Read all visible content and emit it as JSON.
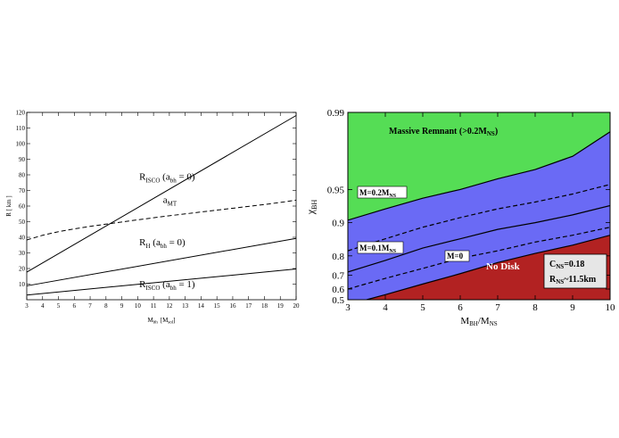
{
  "chart_data": [
    {
      "type": "line",
      "xlabel": "M",
      "xlabel_sub": "bh",
      "xlabel_unit": "[M",
      "xlabel_unit_sub": "sol",
      "xlabel_unit_end": "]",
      "ylabel": "R [ km ]",
      "xlim": [
        3,
        20
      ],
      "ylim": [
        0,
        120
      ],
      "x_ticks": [
        3,
        4,
        5,
        6,
        7,
        8,
        9,
        10,
        11,
        12,
        13,
        14,
        15,
        16,
        17,
        18,
        19,
        20
      ],
      "y_ticks": [
        10,
        20,
        30,
        40,
        50,
        60,
        70,
        80,
        90,
        100,
        110,
        120
      ],
      "series": [
        {
          "key": "risco0",
          "style": "solid",
          "x": [
            3,
            20
          ],
          "y": [
            17.7,
            118
          ]
        },
        {
          "key": "amt",
          "style": "dashed",
          "x": [
            3,
            4,
            5,
            6,
            7,
            8,
            9,
            10,
            11,
            12,
            13,
            14,
            15,
            16,
            17,
            18,
            19,
            20
          ],
          "y": [
            38.3,
            41.3,
            43.6,
            45.4,
            47.0,
            48.4,
            49.8,
            51.2,
            52.5,
            53.8,
            55.0,
            56.2,
            57.4,
            58.6,
            59.8,
            61.0,
            62.3,
            63.8
          ]
        },
        {
          "key": "rh0",
          "style": "solid",
          "x": [
            3,
            20
          ],
          "y": [
            8.9,
            39.3
          ]
        },
        {
          "key": "risco1",
          "style": "solid",
          "x": [
            3,
            20
          ],
          "y": [
            3.0,
            19.7
          ]
        }
      ],
      "annotations": [
        {
          "key": "risco0",
          "main": "R",
          "sub": "ISCO",
          "mid": " (a",
          "sub2": "bh",
          "end": " = 0)",
          "x": 10.1,
          "y": 77
        },
        {
          "key": "amt",
          "main": "a",
          "sub": "MT",
          "mid": "",
          "sub2": "",
          "end": "",
          "x": 11.6,
          "y": 62
        },
        {
          "key": "rh0",
          "main": "R",
          "sub": "H",
          "mid": " (a",
          "sub2": "bh",
          "end": " = 0)",
          "x": 10.1,
          "y": 35
        },
        {
          "key": "risco1",
          "main": "R",
          "sub": "ISCO",
          "mid": " (a",
          "sub2": "bh",
          "end": " = 1)",
          "x": 10.1,
          "y": 8
        }
      ]
    },
    {
      "type": "area",
      "ylabel_main": "χ",
      "ylabel_sub": "BH",
      "xlabel_main": "M",
      "xlabel_sub": "BH",
      "xlabel_mid": "/M",
      "xlabel_sub2": "NS",
      "xlim": [
        3,
        10
      ],
      "y_scale": "log(1-χ)",
      "y_ticks": [
        "0.5",
        "0.6",
        "0.7",
        "0.8",
        "0.9",
        "0.95",
        "0.99"
      ],
      "y_tick_values": [
        0.5,
        0.6,
        0.7,
        0.8,
        0.9,
        0.95,
        0.99
      ],
      "x_ticks": [
        3,
        4,
        5,
        6,
        7,
        8,
        9,
        10
      ],
      "colors": {
        "green": "#55dd55",
        "blue": "#6a6af5",
        "red": "#b22222"
      },
      "curves": [
        {
          "key": "m02",
          "style": "solid",
          "x": [
            3,
            4,
            5,
            6,
            7,
            8,
            9,
            10
          ],
          "y": [
            0.905,
            0.925,
            0.94,
            0.95,
            0.96,
            0.967,
            0.975,
            0.985
          ]
        },
        {
          "key": "m015",
          "style": "dashed",
          "x": [
            3,
            4,
            5,
            6,
            7,
            8,
            9,
            10
          ],
          "y": [
            0.82,
            0.86,
            0.89,
            0.91,
            0.925,
            0.935,
            0.945,
            0.955
          ]
        },
        {
          "key": "m01",
          "style": "solid",
          "x": [
            3,
            4,
            5,
            6,
            7,
            8,
            9,
            10
          ],
          "y": [
            0.72,
            0.78,
            0.83,
            0.86,
            0.885,
            0.9,
            0.915,
            0.93
          ]
        },
        {
          "key": "m005",
          "style": "dashed",
          "x": [
            3,
            4,
            5,
            6,
            7,
            8,
            9,
            10
          ],
          "y": [
            0.6,
            0.68,
            0.74,
            0.79,
            0.82,
            0.85,
            0.87,
            0.89
          ]
        },
        {
          "key": "m0",
          "style": "solid",
          "x": [
            3.5,
            4,
            5,
            6,
            7,
            8,
            9,
            10
          ],
          "y": [
            0.5,
            0.55,
            0.64,
            0.71,
            0.77,
            0.81,
            0.84,
            0.87
          ]
        }
      ],
      "region_labels": {
        "massive_main": "Massive Remnant (>0.2M",
        "massive_sub": "NS",
        "massive_end": ")",
        "no_disk": "No Disk",
        "m02_main": "M=0.2M",
        "m02_sub": "NS",
        "m01_main": "M=0.1M",
        "m01_sub": "NS",
        "m0": "M=0"
      },
      "info_box": {
        "line1_main": "C",
        "line1_sub": "NS",
        "line1_end": "=0.18",
        "line2_main": "R",
        "line2_sub": "NS",
        "line2_end": "~11.5km"
      }
    }
  ]
}
